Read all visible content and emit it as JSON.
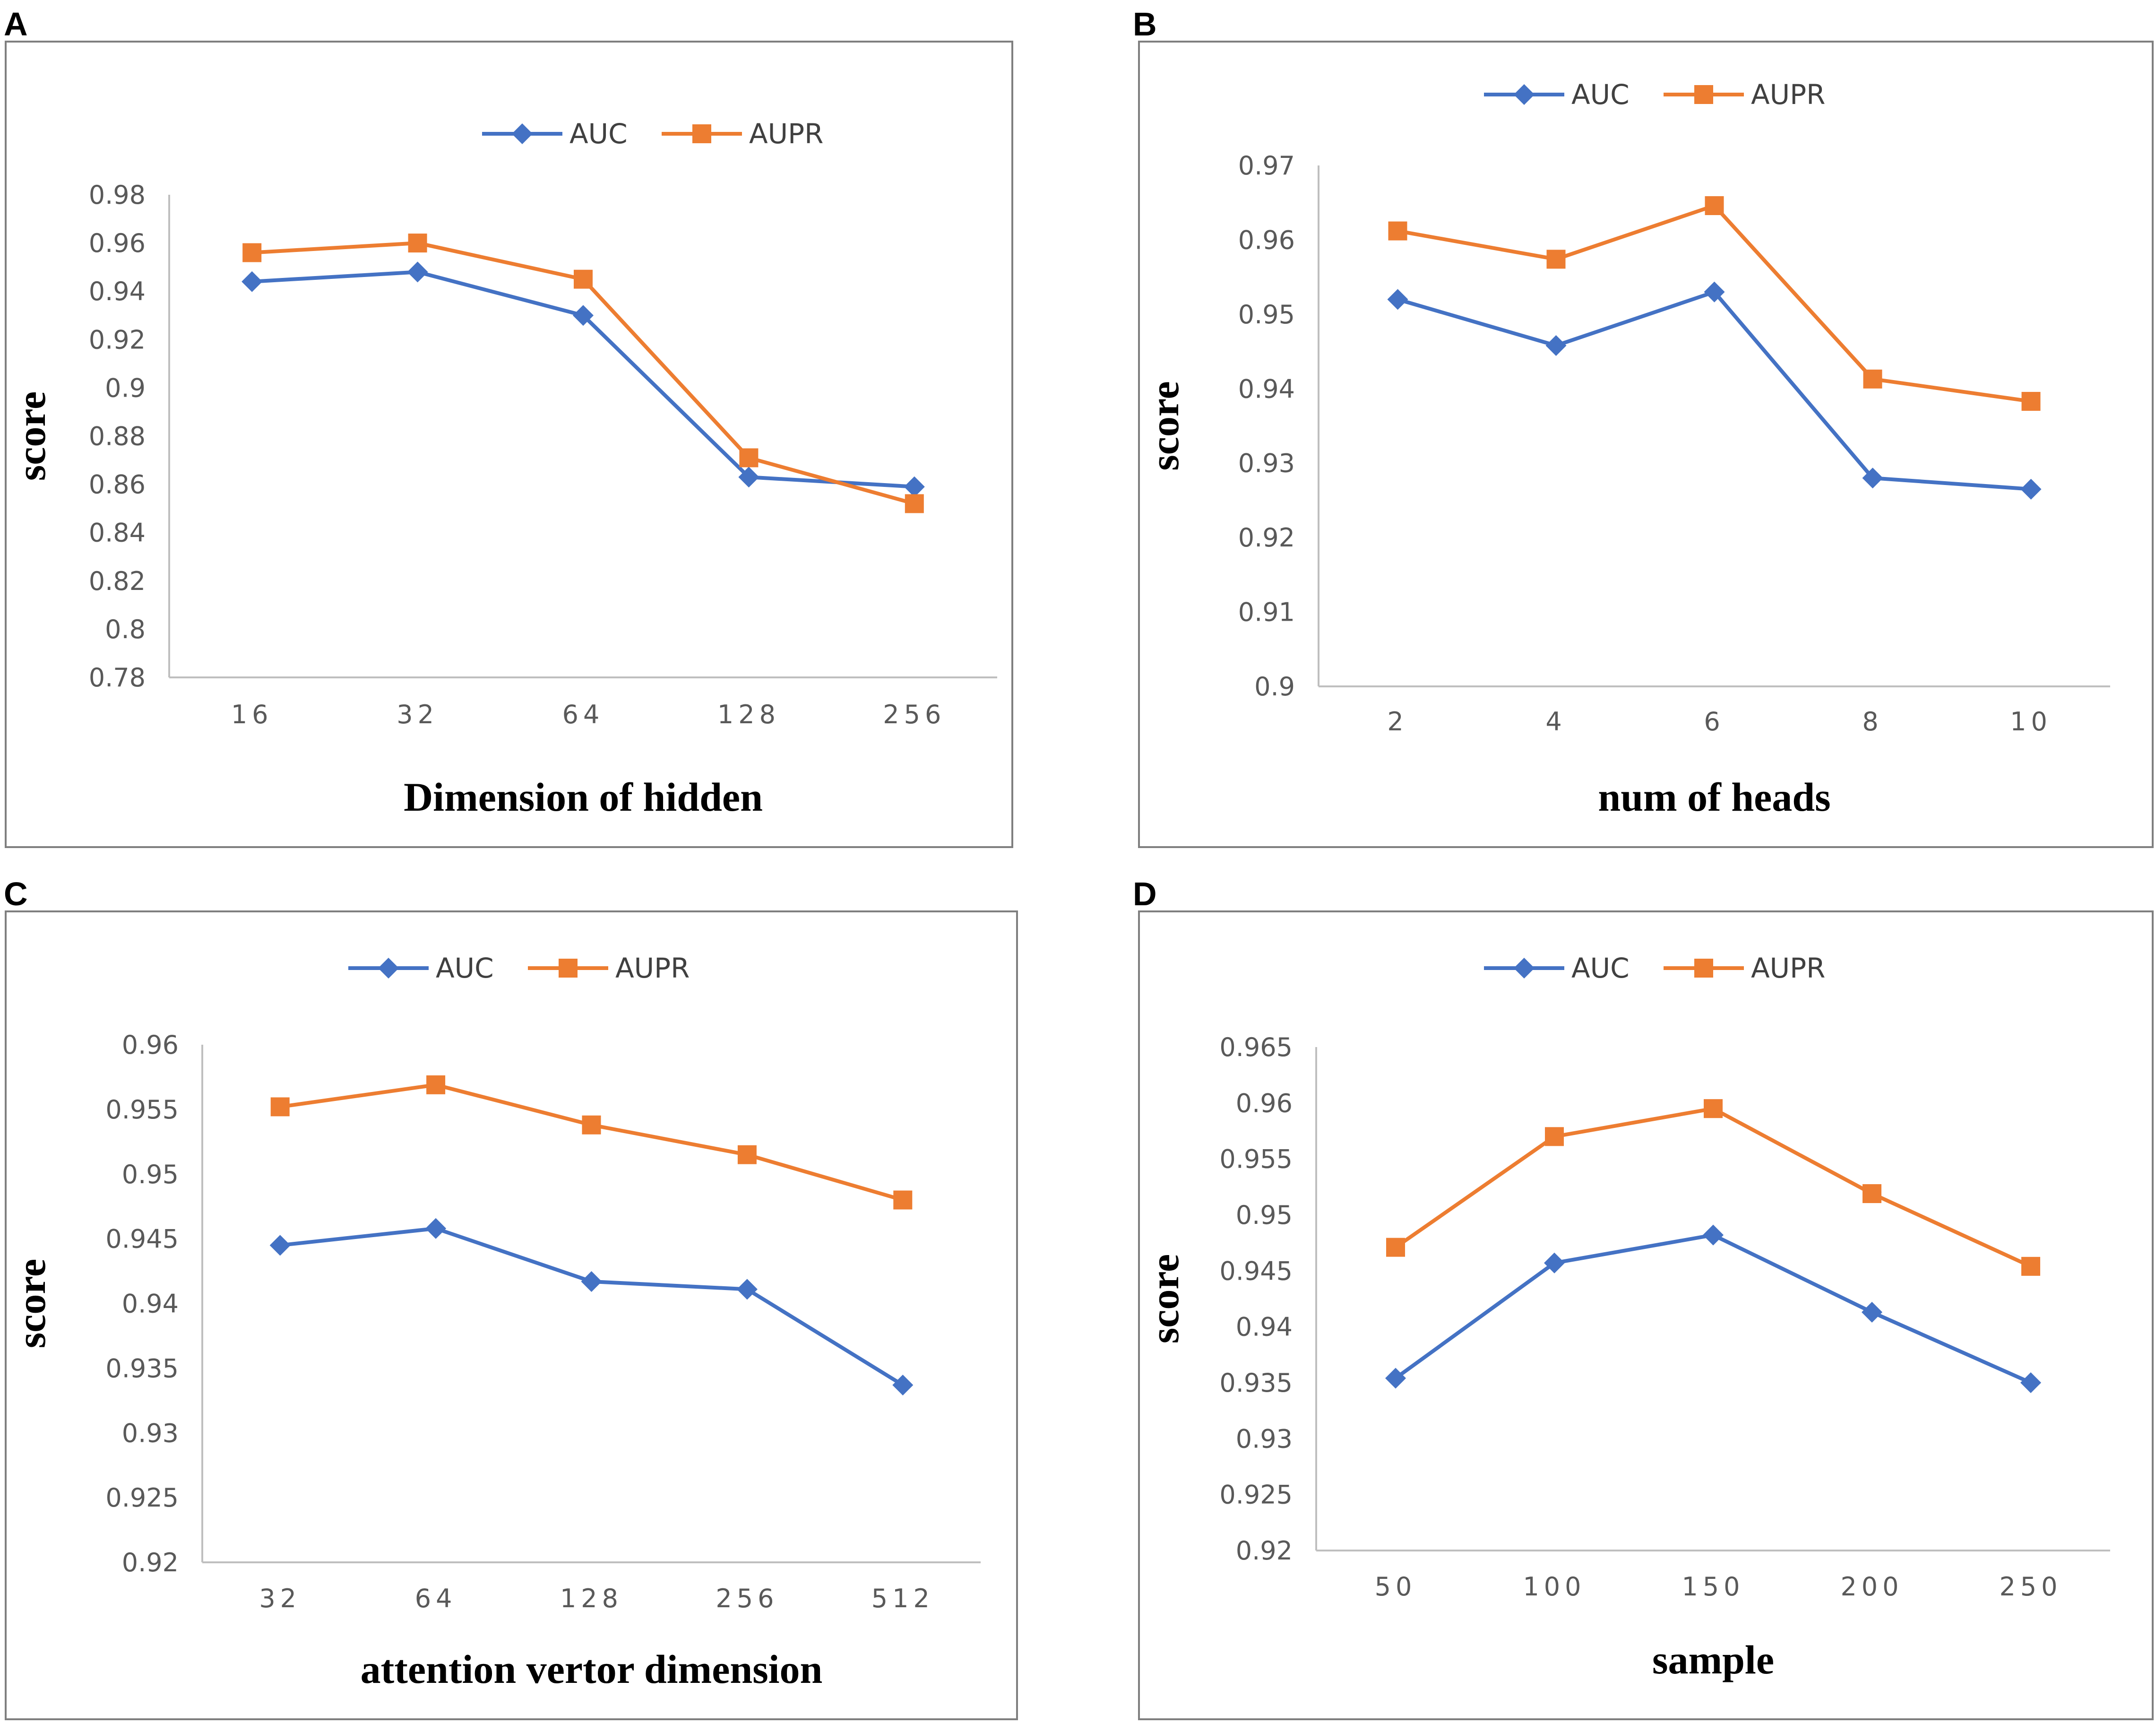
{
  "colors": {
    "auc": "#4472C4",
    "aupr": "#ED7D31",
    "frame": "#7f7f7f",
    "axis": "#bfbfbf"
  },
  "chart_data": [
    {
      "panel": "A",
      "type": "line",
      "xlabel": "Dimension of hidden",
      "ylabel": "score",
      "categories": [
        "16",
        "32",
        "64",
        "128",
        "256"
      ],
      "ylim": [
        0.78,
        0.98
      ],
      "yticks": [
        "0.98",
        "0.96",
        "0.94",
        "0.92",
        "0.9",
        "0.88",
        "0.86",
        "0.84",
        "0.82",
        "0.8",
        "0.78"
      ],
      "legend_position": "top-center",
      "series": [
        {
          "name": "AUC",
          "marker": "diamond",
          "values": [
            0.944,
            0.948,
            0.93,
            0.863,
            0.859
          ]
        },
        {
          "name": "AUPR",
          "marker": "square",
          "values": [
            0.956,
            0.96,
            0.945,
            0.871,
            0.852
          ]
        }
      ]
    },
    {
      "panel": "B",
      "type": "line",
      "xlabel": "num of heads",
      "ylabel": "score",
      "categories": [
        "2",
        "4",
        "6",
        "8",
        "10"
      ],
      "ylim": [
        0.9,
        0.97
      ],
      "yticks": [
        "0.97",
        "0.96",
        "0.95",
        "0.94",
        "0.93",
        "0.92",
        "0.91",
        "0.9"
      ],
      "legend_position": "top-center",
      "series": [
        {
          "name": "AUC",
          "marker": "diamond",
          "values": [
            0.952,
            0.9458,
            0.953,
            0.928,
            0.9265
          ]
        },
        {
          "name": "AUPR",
          "marker": "square",
          "values": [
            0.9612,
            0.9574,
            0.9646,
            0.9413,
            0.9383
          ]
        }
      ]
    },
    {
      "panel": "C",
      "type": "line",
      "xlabel": "attention vertor dimension",
      "ylabel": "score",
      "categories": [
        "32",
        "64",
        "128",
        "256",
        "512"
      ],
      "ylim": [
        0.92,
        0.96
      ],
      "yticks": [
        "0.96",
        "0.955",
        "0.95",
        "0.945",
        "0.94",
        "0.935",
        "0.93",
        "0.925",
        "0.92"
      ],
      "legend_position": "top-center",
      "series": [
        {
          "name": "AUC",
          "marker": "diamond",
          "values": [
            0.9445,
            0.9458,
            0.9417,
            0.9411,
            0.9337
          ]
        },
        {
          "name": "AUPR",
          "marker": "square",
          "values": [
            0.9552,
            0.9569,
            0.9538,
            0.9515,
            0.948
          ]
        }
      ]
    },
    {
      "panel": "D",
      "type": "line",
      "xlabel": "sample",
      "ylabel": "score",
      "categories": [
        "50",
        "100",
        "150",
        "200",
        "250"
      ],
      "ylim": [
        0.92,
        0.965
      ],
      "yticks": [
        "0.965",
        "0.96",
        "0.955",
        "0.95",
        "0.945",
        "0.94",
        "0.935",
        "0.93",
        "0.925",
        "0.92"
      ],
      "legend_position": "top-center",
      "series": [
        {
          "name": "AUC",
          "marker": "diamond",
          "values": [
            0.9354,
            0.9457,
            0.9482,
            0.9413,
            0.935
          ]
        },
        {
          "name": "AUPR",
          "marker": "square",
          "values": [
            0.9471,
            0.957,
            0.9595,
            0.9519,
            0.9454
          ]
        }
      ]
    }
  ]
}
